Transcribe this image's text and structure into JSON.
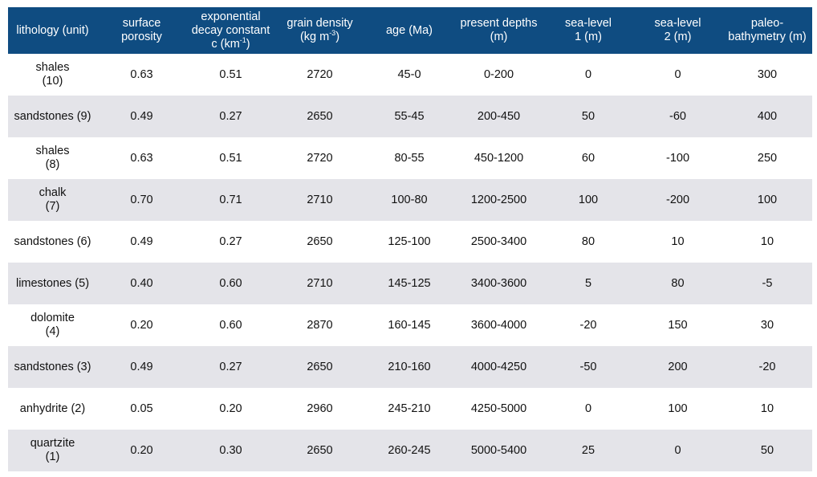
{
  "headers": [
    [
      "lithology (unit)"
    ],
    [
      "surface",
      "porosity"
    ],
    [
      "exponential",
      "decay constant",
      "c (km",
      "-1",
      ")"
    ],
    [
      "grain density",
      "(kg m",
      "-3",
      ")"
    ],
    [
      "age (Ma)"
    ],
    [
      "present depths",
      "(m)"
    ],
    [
      "sea-level",
      "1 (m)"
    ],
    [
      "sea-level",
      "2 (m)"
    ],
    [
      "paleo-",
      "bathymetry (m)"
    ]
  ],
  "rows": [
    [
      [
        "shales",
        "(10)"
      ],
      "0.63",
      "0.51",
      "2720",
      "45-0",
      "0-200",
      "0",
      "0",
      "300"
    ],
    [
      [
        "sandstones (9)"
      ],
      "0.49",
      "0.27",
      "2650",
      "55-45",
      "200-450",
      "50",
      "-60",
      "400"
    ],
    [
      [
        "shales",
        "(8)"
      ],
      "0.63",
      "0.51",
      "2720",
      "80-55",
      "450-1200",
      "60",
      "-100",
      "250"
    ],
    [
      [
        "chalk",
        "(7)"
      ],
      "0.70",
      "0.71",
      "2710",
      "100-80",
      "1200-2500",
      "100",
      "-200",
      "100"
    ],
    [
      [
        "sandstones (6)"
      ],
      "0.49",
      "0.27",
      "2650",
      "125-100",
      "2500-3400",
      "80",
      "10",
      "10"
    ],
    [
      [
        "limestones (5)"
      ],
      "0.40",
      "0.60",
      "2710",
      "145-125",
      "3400-3600",
      "5",
      "80",
      "-5"
    ],
    [
      [
        "dolomite",
        "(4)"
      ],
      "0.20",
      "0.60",
      "2870",
      "160-145",
      "3600-4000",
      "-20",
      "150",
      "30"
    ],
    [
      [
        "sandstones (3)"
      ],
      "0.49",
      "0.27",
      "2650",
      "210-160",
      "4000-4250",
      "-50",
      "200",
      "-20"
    ],
    [
      [
        "anhydrite (2)"
      ],
      "0.05",
      "0.20",
      "2960",
      "245-210",
      "4250-5000",
      "0",
      "100",
      "10"
    ],
    [
      [
        "quartzite",
        "(1)"
      ],
      "0.20",
      "0.30",
      "2650",
      "260-245",
      "5000-5400",
      "25",
      "0",
      "50"
    ]
  ],
  "colors": {
    "header_bg": "#0f4c81",
    "stripe_bg": "#e4e4e9"
  }
}
